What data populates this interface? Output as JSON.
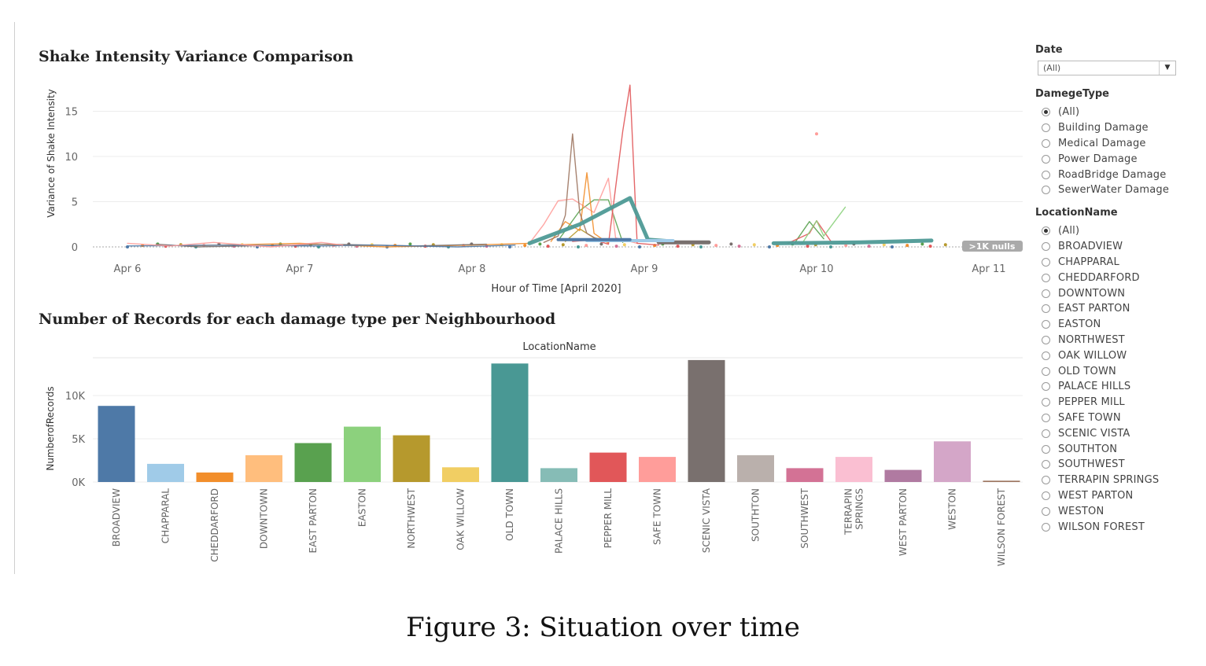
{
  "charts_text": {
    "title1": "Shake Intensity Variance Comparison",
    "title2": "Number of Records for each damage type per Neighbourhood",
    "caption": "Figure 3: Situation over time",
    "nulls_badge": ">1K nulls",
    "top_header": "LocationName"
  },
  "filters": {
    "date": {
      "title": "Date",
      "value": "(All)"
    },
    "damage": {
      "title": "DamegeType",
      "options": [
        "(All)",
        "Building Damage",
        "Medical Damage",
        "Power Damage",
        "RoadBridge Damage",
        "SewerWater Damage"
      ],
      "selected": "(All)"
    },
    "location": {
      "title": "LocationName",
      "options": [
        "(All)",
        "BROADVIEW",
        "CHAPPARAL",
        "CHEDDARFORD",
        "DOWNTOWN",
        "EAST PARTON",
        "EASTON",
        "NORTHWEST",
        "OAK WILLOW",
        "OLD TOWN",
        "PALACE HILLS",
        "PEPPER MILL",
        "SAFE TOWN",
        "SCENIC VISTA",
        "SOUTHTON",
        "SOUTHWEST",
        "TERRAPIN SPRINGS",
        "WEST PARTON",
        "WESTON",
        "WILSON FOREST"
      ],
      "selected": "(All)"
    }
  },
  "colors": {
    "BROADVIEW": "#4e79a7",
    "CHAPPARAL": "#a0cbe8",
    "CHEDDARFORD": "#f28e2b",
    "DOWNTOWN": "#ffbe7d",
    "EAST PARTON": "#59a14f",
    "EASTON": "#8cd17d",
    "NORTHWEST": "#b6992d",
    "OAK WILLOW": "#f1ce63",
    "OLD TOWN": "#499894",
    "PALACE HILLS": "#86bcb6",
    "PEPPER MILL": "#e15759",
    "SAFE TOWN": "#ff9d9a",
    "SCENIC VISTA": "#79706e",
    "SOUTHTON": "#bab0ac",
    "SOUTHWEST": "#d37295",
    "TERRAPIN SPRINGS": "#fabfd2",
    "WEST PARTON": "#b07aa1",
    "WESTON": "#d4a6c8",
    "WILSON FOREST": "#9d7660"
  },
  "chart_data": [
    {
      "type": "line",
      "title": "Shake Intensity Variance Comparison",
      "xlabel": "Hour of Time [April 2020]",
      "ylabel": "Variance of Shake Intensity",
      "x_ticks": [
        "Apr 6",
        "Apr 7",
        "Apr 8",
        "Apr 9",
        "Apr 10",
        "Apr 11"
      ],
      "xlim": [
        "2020-04-06",
        "2020-04-11"
      ],
      "y_ticks": [
        0,
        5,
        10,
        15
      ],
      "ylim": [
        -0.5,
        18.5
      ],
      "grid": true,
      "series": [
        {
          "color": "#4e9a96",
          "points": [
            [
              "2020-04-08T08:00",
              0.4
            ],
            [
              "2020-04-08T15:00",
              2.5
            ],
            [
              "2020-04-08T22:00",
              5.4
            ],
            [
              "2020-04-09T00:30",
              0.8
            ],
            [
              "2020-04-09T04:00",
              0.6
            ]
          ]
        },
        {
          "color": "#4e9a96",
          "points": [
            [
              "2020-04-09T18:00",
              0.4
            ],
            [
              "2020-04-10T06:00",
              0.5
            ],
            [
              "2020-04-10T16:00",
              0.7
            ]
          ]
        },
        {
          "color": "#e15759",
          "points": [
            [
              "2020-04-08T14:00",
              0.6
            ],
            [
              "2020-04-08T17:00",
              0.8
            ],
            [
              "2020-04-08T19:00",
              0.3
            ],
            [
              "2020-04-08T21:00",
              12.8
            ],
            [
              "2020-04-08T22:00",
              17.9
            ],
            [
              "2020-04-08T23:00",
              0.4
            ],
            [
              "2020-04-09T02:00",
              0.2
            ]
          ]
        },
        {
          "color": "#9d7660",
          "points": [
            [
              "2020-04-08T10:00",
              0.5
            ],
            [
              "2020-04-08T12:00",
              1.2
            ],
            [
              "2020-04-08T13:00",
              3.5
            ],
            [
              "2020-04-08T14:00",
              12.5
            ],
            [
              "2020-04-08T15:00",
              3.8
            ],
            [
              "2020-04-08T16:00",
              1.5
            ],
            [
              "2020-04-08T18:00",
              0.6
            ]
          ]
        },
        {
          "color": "#f28e2b",
          "points": [
            [
              "2020-04-08T11:00",
              0.6
            ],
            [
              "2020-04-08T13:00",
              2.8
            ],
            [
              "2020-04-08T15:00",
              1.8
            ],
            [
              "2020-04-08T16:00",
              8.2
            ],
            [
              "2020-04-08T17:00",
              1.5
            ],
            [
              "2020-04-08T19:00",
              0.4
            ]
          ]
        },
        {
          "color": "#ff9d9a",
          "points": [
            [
              "2020-04-08T08:00",
              0.4
            ],
            [
              "2020-04-08T10:00",
              2.5
            ],
            [
              "2020-04-08T12:00",
              5.1
            ],
            [
              "2020-04-08T14:00",
              5.3
            ],
            [
              "2020-04-08T17:00",
              3.8
            ],
            [
              "2020-04-08T19:00",
              7.6
            ],
            [
              "2020-04-08T20:00",
              1.0
            ],
            [
              "2020-04-08T23:00",
              0.4
            ]
          ]
        },
        {
          "color": "#59a14f",
          "points": [
            [
              "2020-04-08T12:00",
              0.7
            ],
            [
              "2020-04-08T15:00",
              4.0
            ],
            [
              "2020-04-08T17:00",
              5.2
            ],
            [
              "2020-04-08T19:00",
              5.2
            ],
            [
              "2020-04-08T21:00",
              0.5
            ]
          ]
        },
        {
          "color": "#b6992d",
          "points": [
            [
              "2020-04-08T13:00",
              0.6
            ],
            [
              "2020-04-08T15:00",
              2.0
            ],
            [
              "2020-04-08T17:00",
              1.0
            ],
            [
              "2020-04-08T20:00",
              0.6
            ]
          ]
        },
        {
          "color": "#8cd17d",
          "points": [
            [
              "2020-04-09T22:00",
              0.4
            ],
            [
              "2020-04-10T00:00",
              2.9
            ],
            [
              "2020-04-10T01:00",
              1.2
            ],
            [
              "2020-04-10T04:00",
              4.4
            ]
          ]
        },
        {
          "color": "#e15759",
          "points": [
            [
              "2020-04-09T20:00",
              0.4
            ],
            [
              "2020-04-09T23:00",
              1.5
            ],
            [
              "2020-04-10T00:00",
              2.9
            ],
            [
              "2020-04-10T02:00",
              0.6
            ]
          ]
        },
        {
          "color": "#59a14f",
          "points": [
            [
              "2020-04-09T21:00",
              0.5
            ],
            [
              "2020-04-09T23:00",
              2.8
            ],
            [
              "2020-04-10T01:00",
              0.9
            ]
          ]
        },
        {
          "color": "#ff9d9a",
          "points": [
            [
              "2020-04-06T00:00",
              0.4
            ],
            [
              "2020-04-06T06:00",
              0.1
            ],
            [
              "2020-04-06T12:00",
              0.5
            ],
            [
              "2020-04-06T20:00",
              0.0
            ],
            [
              "2020-04-07T03:00",
              0.5
            ],
            [
              "2020-04-07T06:00",
              0.2
            ]
          ]
        },
        {
          "color": "#4e79a7",
          "points": [
            [
              "2020-04-06T00:00",
              0.1
            ],
            [
              "2020-04-06T14:00",
              0.2
            ],
            [
              "2020-04-07T02:00",
              0.1
            ],
            [
              "2020-04-07T10:00",
              0.2
            ],
            [
              "2020-04-07T22:00",
              0.0
            ],
            [
              "2020-04-08T06:00",
              0.2
            ]
          ]
        },
        {
          "color": "#79706e",
          "points": [
            [
              "2020-04-06T04:00",
              0.3
            ],
            [
              "2020-04-06T10:00",
              0.0
            ],
            [
              "2020-04-07T04:00",
              0.3
            ],
            [
              "2020-04-07T16:00",
              0.1
            ],
            [
              "2020-04-08T02:00",
              0.3
            ]
          ]
        },
        {
          "color": "#f28e2b",
          "points": [
            [
              "2020-04-06T08:00",
              0.1
            ],
            [
              "2020-04-07T00:00",
              0.4
            ],
            [
              "2020-04-07T12:00",
              0.0
            ],
            [
              "2020-04-08T00:00",
              0.2
            ],
            [
              "2020-04-08T08:00",
              0.4
            ]
          ]
        }
      ],
      "outlier_point": {
        "x": "2020-04-10T00:00",
        "y": 12.5,
        "color": "#ff9d9a"
      }
    },
    {
      "type": "bar",
      "title": "Number of Records for each damage type per Neighbourhood",
      "column_header": "LocationName",
      "ylabel": "NumberofRecords",
      "y_ticks": [
        0,
        5000,
        10000
      ],
      "y_tick_labels": [
        "0K",
        "5K",
        "10K"
      ],
      "ylim": [
        0,
        14300
      ],
      "grid": true,
      "categories": [
        "BROADVIEW",
        "CHAPPARAL",
        "CHEDDARFORD",
        "DOWNTOWN",
        "EAST PARTON",
        "EASTON",
        "NORTHWEST",
        "OAK WILLOW",
        "OLD TOWN",
        "PALACE HILLS",
        "PEPPER MILL",
        "SAFE TOWN",
        "SCENIC VISTA",
        "SOUTHTON",
        "SOUTHWEST",
        "TERRAPIN SPRINGS",
        "WEST PARTON",
        "WESTON",
        "WILSON FOREST"
      ],
      "values": [
        8800,
        2100,
        1100,
        3100,
        4500,
        6400,
        5400,
        1700,
        13700,
        1600,
        3400,
        2900,
        14100,
        3100,
        1600,
        2900,
        1400,
        4700,
        150
      ]
    }
  ]
}
